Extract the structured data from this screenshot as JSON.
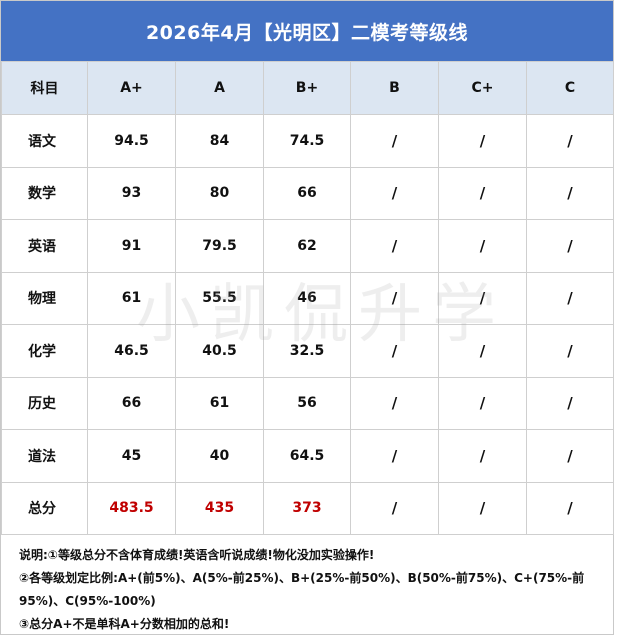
{
  "title": "2026年4月【光明区】二模考等级线",
  "watermark": "小凯侃升学",
  "header": [
    "科目",
    "A+",
    "A",
    "B+",
    "B",
    "C+",
    "C"
  ],
  "rows": [
    {
      "subject": "语文",
      "values": [
        "94.5",
        "84",
        "74.5",
        "/",
        "/",
        "/"
      ]
    },
    {
      "subject": "数学",
      "values": [
        "93",
        "80",
        "66",
        "/",
        "/",
        "/"
      ]
    },
    {
      "subject": "英语",
      "values": [
        "91",
        "79.5",
        "62",
        "/",
        "/",
        "/"
      ]
    },
    {
      "subject": "物理",
      "values": [
        "61",
        "55.5",
        "46",
        "/",
        "/",
        "/"
      ]
    },
    {
      "subject": "化学",
      "values": [
        "46.5",
        "40.5",
        "32.5",
        "/",
        "/",
        "/"
      ]
    },
    {
      "subject": "历史",
      "values": [
        "66",
        "61",
        "56",
        "/",
        "/",
        "/"
      ]
    },
    {
      "subject": "道法",
      "values": [
        "45",
        "40",
        "64.5",
        "/",
        "/",
        "/"
      ]
    },
    {
      "subject": "总分",
      "values": [
        "483.5",
        "435",
        "373",
        "/",
        "/",
        "/"
      ],
      "highlight": true
    }
  ],
  "notes": [
    "说明:①等级总分不含体育成绩!英语含听说成绩!物化没加实验操作!",
    "②各等级划定比例:A+(前5%)、A(5%-前25%)、B+(25%-前50%)、B(50%-前75%)、C+(75%-前95%)、C(95%-100%)",
    "③总分A+不是单科A+分数相加的总和!"
  ],
  "colors": {
    "title_bg": "#4472c4",
    "header_bg": "#dce6f2",
    "highlight_text": "#c00000"
  }
}
